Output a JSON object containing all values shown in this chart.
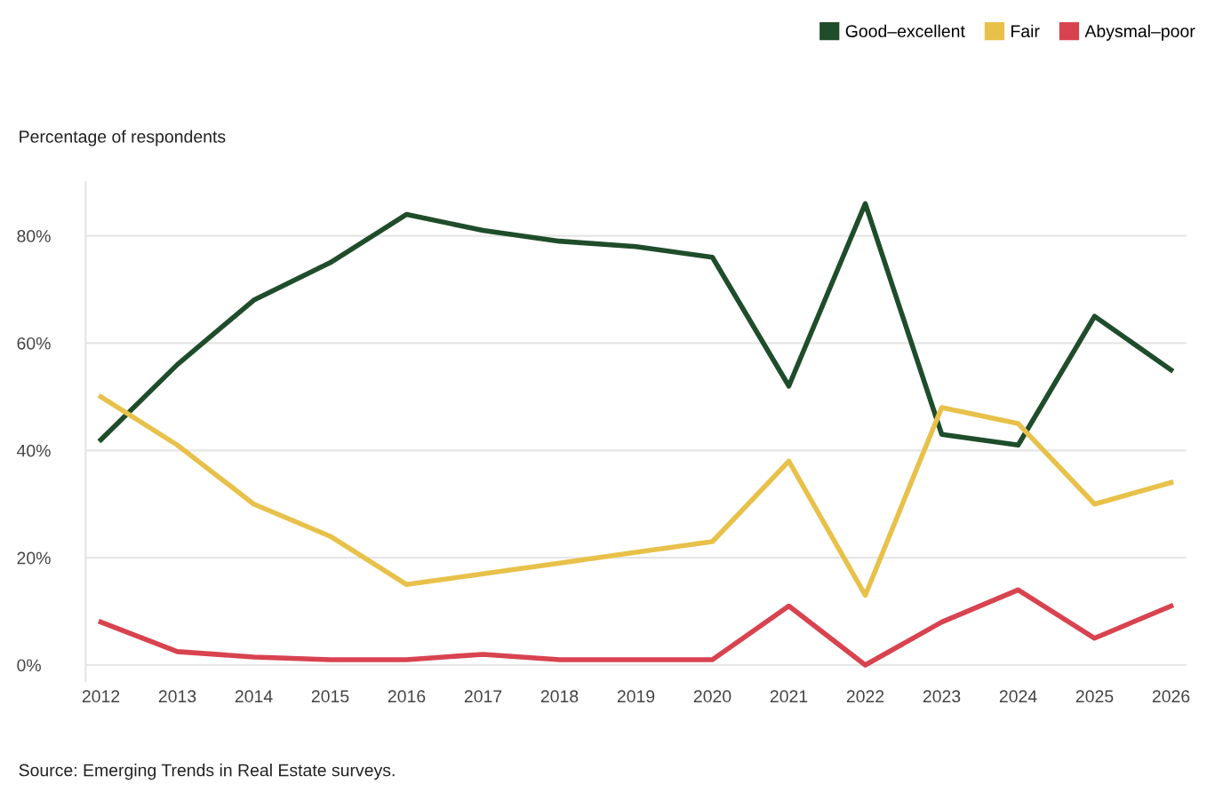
{
  "chart_data": {
    "type": "line",
    "ylabel": "Percentage of respondents",
    "x": [
      2012,
      2013,
      2014,
      2015,
      2016,
      2017,
      2018,
      2019,
      2020,
      2021,
      2022,
      2023,
      2024,
      2025,
      2026
    ],
    "series": [
      {
        "name": "Good–excellent",
        "color": "#1f4d2b",
        "values": [
          42,
          56,
          68,
          75,
          84,
          81,
          79,
          78,
          76,
          52,
          86,
          43,
          41,
          65,
          55
        ]
      },
      {
        "name": "Fair",
        "color": "#e8c14a",
        "values": [
          50,
          41,
          30,
          24,
          15,
          17,
          19,
          21,
          23,
          38,
          13,
          48,
          45,
          30,
          34
        ]
      },
      {
        "name": "Abysmal–poor",
        "color": "#d8434f",
        "values": [
          8,
          2.5,
          1.5,
          1,
          1,
          2,
          1,
          1,
          1,
          11,
          0,
          8,
          14,
          5,
          11
        ]
      }
    ],
    "xlim": [
      2011.8,
      2026.2
    ],
    "xticks": [
      2012,
      2013,
      2014,
      2015,
      2016,
      2017,
      2018,
      2019,
      2020,
      2021,
      2022,
      2023,
      2024,
      2025,
      2026
    ],
    "ylim": [
      -3,
      90
    ],
    "yticks": [
      {
        "value": 0,
        "label": "0%"
      },
      {
        "value": 20,
        "label": "20%"
      },
      {
        "value": 40,
        "label": "40%"
      },
      {
        "value": 60,
        "label": "60%"
      },
      {
        "value": 80,
        "label": "80%"
      }
    ],
    "grid": "y",
    "legend": "top right",
    "marker": "none",
    "line_style": "solid",
    "annotations": [
      "Source: Emerging Trends in Real Estate surveys."
    ]
  }
}
